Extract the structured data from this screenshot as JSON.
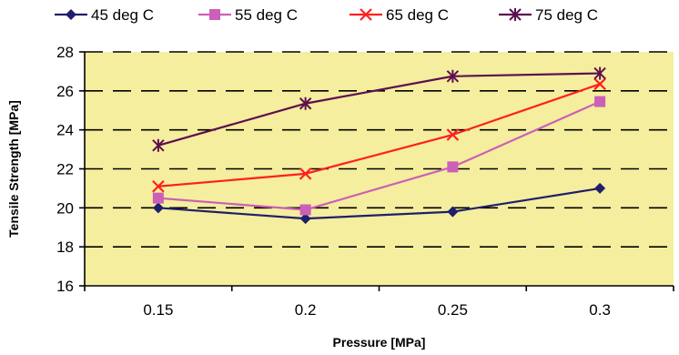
{
  "chart_data": {
    "type": "line",
    "x": [
      "0.15",
      "0.2",
      "0.25",
      "0.3"
    ],
    "xlabel": "Pressure [MPa]",
    "ylabel": "Tensile Strength [MPa]",
    "ylim": [
      16,
      28
    ],
    "yticks": [
      16,
      18,
      20,
      22,
      24,
      26,
      28
    ],
    "grid": "horizontal dashed",
    "legend_position": "top",
    "plot_background": "#F5EE9E",
    "series": [
      {
        "name": "45 deg C",
        "values": [
          20.0,
          19.45,
          19.8,
          21.0
        ],
        "color": "#1F1F6B",
        "marker": "diamond"
      },
      {
        "name": "55 deg C",
        "values": [
          20.5,
          19.9,
          22.1,
          25.45
        ],
        "color": "#CC5FB7",
        "marker": "square"
      },
      {
        "name": "65 deg C",
        "values": [
          21.1,
          21.75,
          23.75,
          26.35
        ],
        "color": "#FF1F1F",
        "marker": "x"
      },
      {
        "name": "75 deg C",
        "values": [
          23.2,
          25.35,
          26.75,
          26.9
        ],
        "color": "#5E0F4F",
        "marker": "star"
      }
    ]
  }
}
